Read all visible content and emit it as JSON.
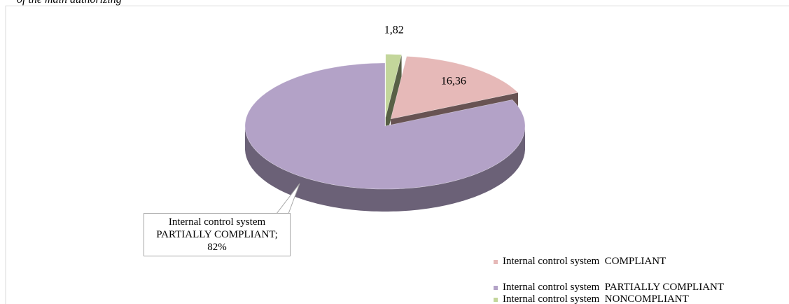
{
  "caption": "of the main authorizing",
  "chart_data": {
    "type": "pie",
    "categories": [
      "Internal control system  COMPLIANT",
      "Internal control system  PARTIALLY COMPLIANT",
      "Internal control system  NONCOMPLIANT"
    ],
    "values": [
      16.36,
      82,
      1.82
    ],
    "value_labels": [
      "16,36",
      "Internal control system PARTIALLY COMPLIANT; 82%",
      "1,82"
    ],
    "colors": [
      "#e6b9b8",
      "#b3a2c7",
      "#c3d69b"
    ],
    "exploded": [
      true,
      false,
      true
    ],
    "legend": "bottom-right"
  }
}
